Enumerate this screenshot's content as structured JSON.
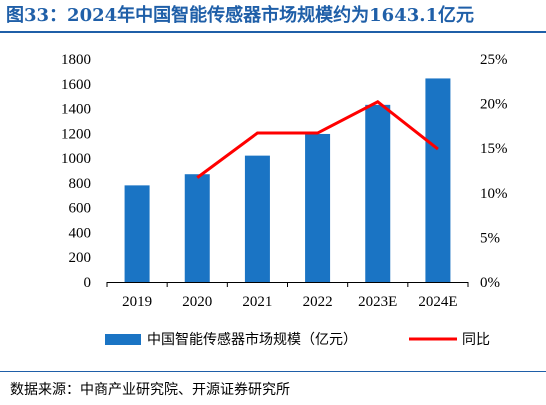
{
  "title": "图33：2024年中国智能传感器市场规模约为1643.1亿元",
  "source": "数据来源：中商产业研究院、开源证券研究所",
  "chart_data": {
    "type": "bar",
    "categories": [
      "2019",
      "2020",
      "2021",
      "2022",
      "2023E",
      "2024E"
    ],
    "series": [
      {
        "name": "中国智能传感器市场规模（亿元）",
        "kind": "bar",
        "axis": "left",
        "color": "#1a74c4",
        "values": [
          780,
          870,
          1020,
          1195,
          1430,
          1643.1
        ]
      },
      {
        "name": "同比",
        "kind": "line",
        "axis": "right",
        "color": "#ff0000",
        "values": [
          null,
          11.7,
          16.7,
          16.7,
          20.2,
          14.9
        ]
      }
    ],
    "y_left": {
      "min": 0,
      "max": 1800,
      "step": 200,
      "ticks": [
        "0",
        "200",
        "400",
        "600",
        "800",
        "1000",
        "1200",
        "1400",
        "1600",
        "1800"
      ]
    },
    "y_right": {
      "min": 0,
      "max": 25,
      "step": 5,
      "ticks": [
        "0%",
        "5%",
        "10%",
        "15%",
        "20%",
        "25%"
      ]
    },
    "legend_position": "bottom",
    "grid": false
  }
}
